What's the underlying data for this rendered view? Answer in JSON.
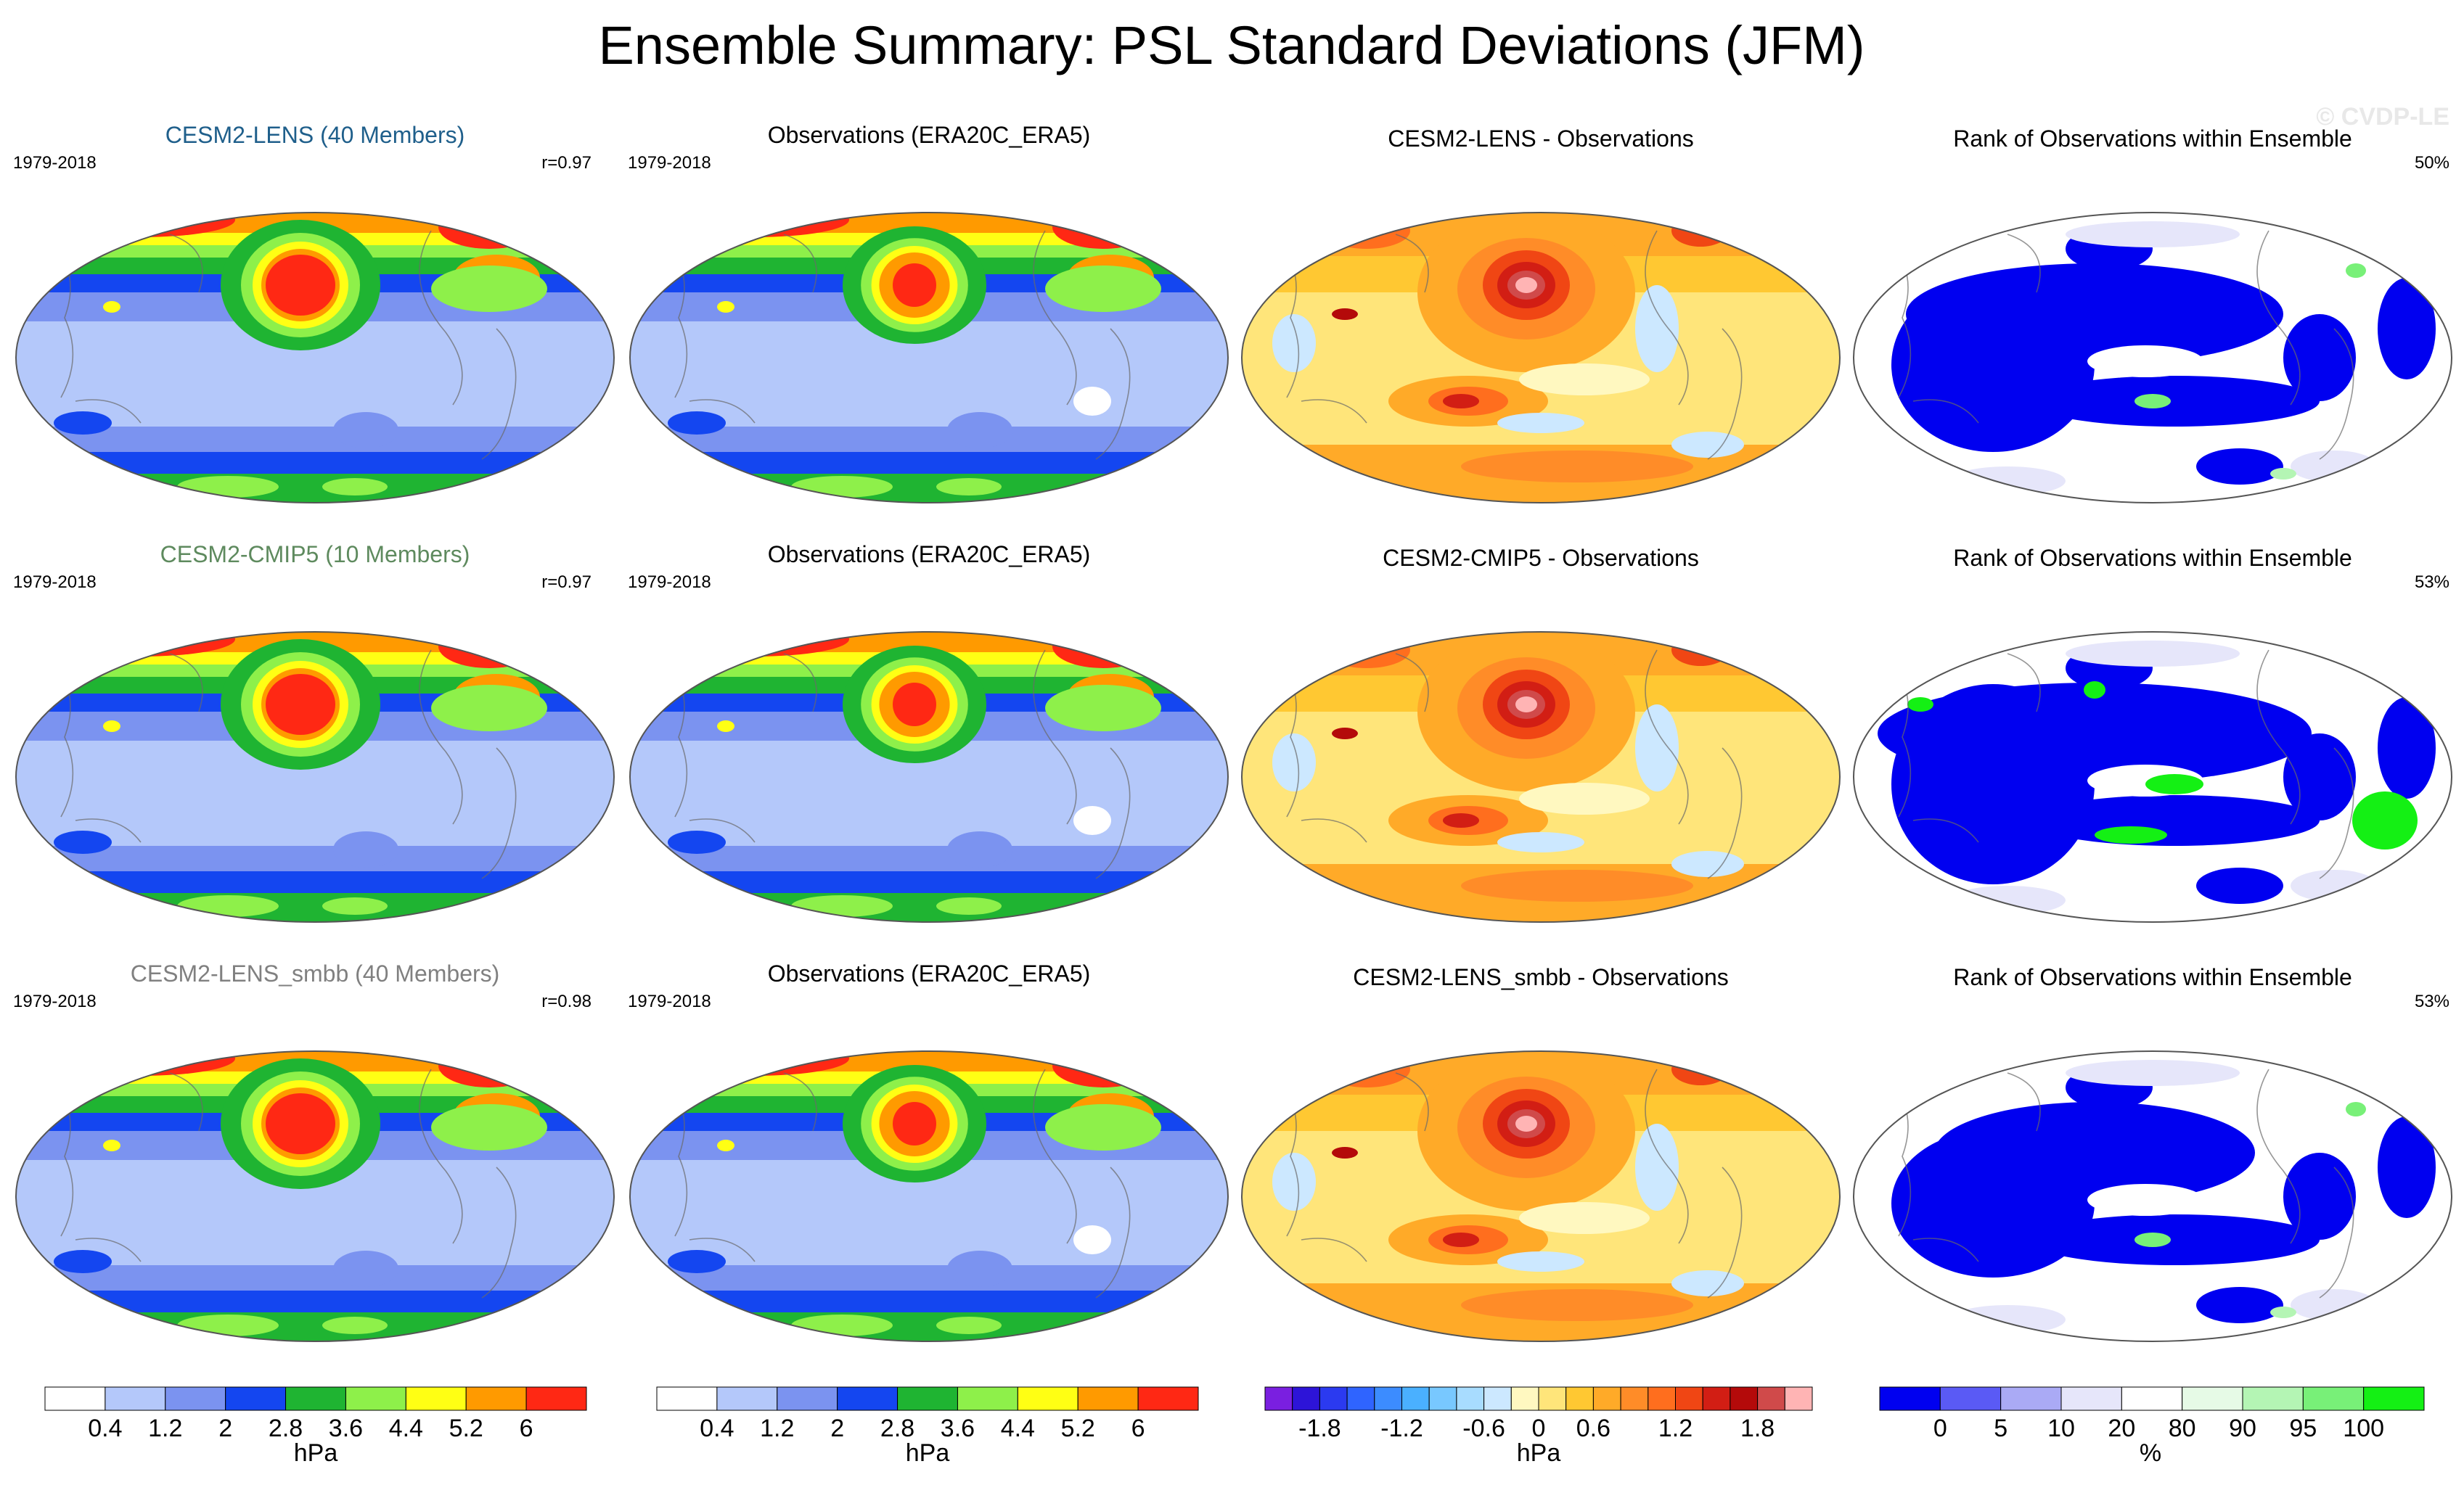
{
  "chart_data": {
    "type": "heatmap",
    "title": "Ensemble Summary: PSL Standard Deviations (JFM)",
    "watermark": "© CVDP-LE",
    "projection": "global map, Pacific-centred ellipse",
    "rows": [
      {
        "model": "CESM2-LENS (40 Members)",
        "model_color": "#1f5f8b",
        "period": "1979-2018",
        "pattern_correlation": "r=0.97",
        "obs_title": "Observations (ERA20C_ERA5)",
        "obs_period": "1979-2018",
        "diff_title": "CESM2-LENS - Observations",
        "rank_title": "Rank of Observations within Ensemble",
        "rank_percent": "50%"
      },
      {
        "model": "CESM2-CMIP5 (10 Members)",
        "model_color": "#5e8a5e",
        "period": "1979-2018",
        "pattern_correlation": "r=0.97",
        "obs_title": "Observations (ERA20C_ERA5)",
        "obs_period": "1979-2018",
        "diff_title": "CESM2-CMIP5 - Observations",
        "rank_title": "Rank of Observations within Ensemble",
        "rank_percent": "53%"
      },
      {
        "model": "CESM2-LENS_smbb (40 Members)",
        "model_color": "#808080",
        "period": "1979-2018",
        "pattern_correlation": "r=0.98",
        "obs_title": "Observations (ERA20C_ERA5)",
        "obs_period": "1979-2018",
        "diff_title": "CESM2-LENS_smbb - Observations",
        "rank_title": "Rank of Observations within Ensemble",
        "rank_percent": "53%"
      }
    ],
    "colorbars": [
      {
        "name": "std",
        "unit": "hPa",
        "labels": [
          "0.4",
          "1.2",
          "2",
          "2.8",
          "3.6",
          "4.4",
          "5.2",
          "6"
        ],
        "colors": [
          "#ffffff",
          "#b4c8fa",
          "#7b93f0",
          "#1446f0",
          "#1fb432",
          "#8ef04a",
          "#ffff14",
          "#ff9a00",
          "#ff2814"
        ]
      },
      {
        "name": "diff",
        "unit": "hPa",
        "labels": [
          "-1.8",
          "-1.2",
          "-0.6",
          "0",
          "0.6",
          "1.2",
          "1.8"
        ],
        "colors": [
          "#7a1fe0",
          "#2d14d8",
          "#2b3af0",
          "#2f64ff",
          "#3c8cff",
          "#4ab0ff",
          "#78c8ff",
          "#a8dcff",
          "#cce8ff",
          "#fff8c0",
          "#ffe57a",
          "#ffc832",
          "#ffaa28",
          "#ff8c28",
          "#ff6e1e",
          "#f04614",
          "#d21e14",
          "#b40a0a",
          "#d04a4a",
          "#ffb4b4"
        ]
      },
      {
        "name": "rank",
        "unit": "%",
        "labels": [
          "0",
          "5",
          "10",
          "20",
          "80",
          "90",
          "95",
          "100"
        ],
        "colors": [
          "#0000f0",
          "#5a5af5",
          "#aaaaf5",
          "#e6e6fa",
          "#ffffff",
          "#e6fae6",
          "#b4f5b4",
          "#78f078",
          "#14f014"
        ]
      }
    ]
  }
}
